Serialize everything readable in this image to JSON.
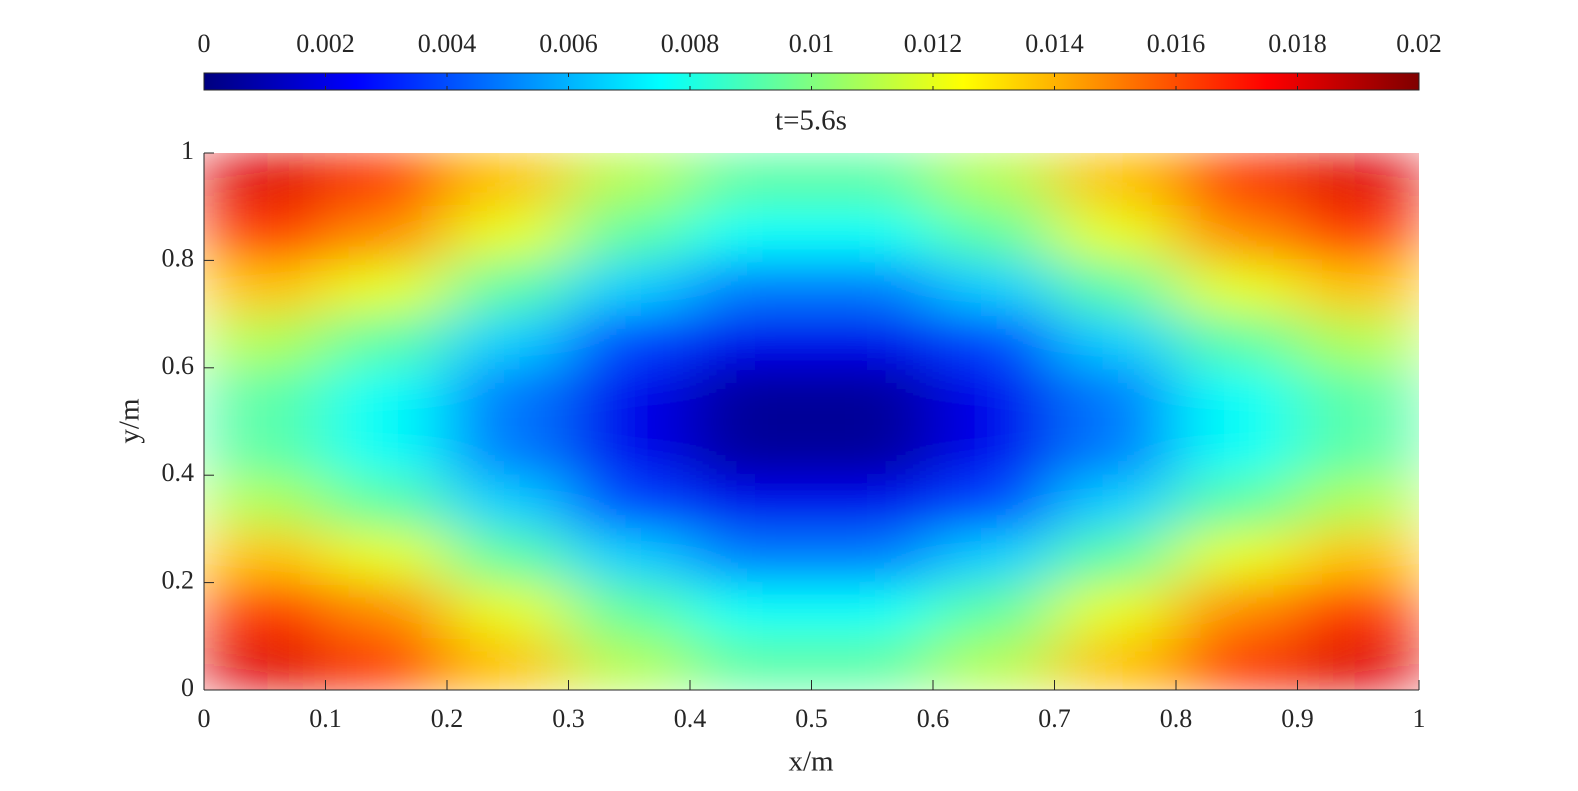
{
  "chart_data": {
    "type": "heatmap",
    "title": "t=5.6s",
    "x_label": "x/m",
    "y_label": "y/m",
    "x": [
      0.05,
      0.15,
      0.25,
      0.35,
      0.45,
      0.55,
      0.65,
      0.75,
      0.85,
      0.95
    ],
    "y": [
      0.05,
      0.15,
      0.25,
      0.35,
      0.45,
      0.55,
      0.65,
      0.75,
      0.85,
      0.95
    ],
    "z": [
      [
        0.01814,
        0.01645,
        0.01372,
        0.01099,
        0.0093,
        0.0093,
        0.01099,
        0.01372,
        0.01645,
        0.01814
      ],
      [
        0.01645,
        0.01476,
        0.01203,
        0.0093,
        0.00761,
        0.00761,
        0.0093,
        0.01203,
        0.01476,
        0.01645
      ],
      [
        0.01372,
        0.01203,
        0.0093,
        0.00657,
        0.00488,
        0.00488,
        0.00657,
        0.0093,
        0.01203,
        0.01372
      ],
      [
        0.01099,
        0.0093,
        0.00657,
        0.00384,
        0.00215,
        0.00215,
        0.00384,
        0.00657,
        0.0093,
        0.01099
      ],
      [
        0.0093,
        0.00761,
        0.00488,
        0.00215,
        0.00046,
        0.00046,
        0.00215,
        0.00488,
        0.00761,
        0.0093
      ],
      [
        0.0093,
        0.00761,
        0.00488,
        0.00215,
        0.00046,
        0.00046,
        0.00215,
        0.00488,
        0.00761,
        0.0093
      ],
      [
        0.01099,
        0.0093,
        0.00657,
        0.00384,
        0.00215,
        0.00215,
        0.00384,
        0.00657,
        0.0093,
        0.01099
      ],
      [
        0.01372,
        0.01203,
        0.0093,
        0.00657,
        0.00488,
        0.00488,
        0.00657,
        0.0093,
        0.01203,
        0.01372
      ],
      [
        0.01645,
        0.01476,
        0.01203,
        0.0093,
        0.00761,
        0.00761,
        0.0093,
        0.01203,
        0.01476,
        0.01645
      ],
      [
        0.01814,
        0.01645,
        0.01372,
        0.01099,
        0.0093,
        0.0093,
        0.01099,
        0.01372,
        0.01645,
        0.01814
      ]
    ],
    "colormap": [
      "#00007f",
      "#0000ff",
      "#0080ff",
      "#00ffff",
      "#80ff80",
      "#ffff00",
      "#ff8000",
      "#ff0000",
      "#7f0000"
    ],
    "clim": [
      0,
      0.02
    ],
    "cticks": [
      0,
      0.002,
      0.004,
      0.006,
      0.008,
      0.01,
      0.012,
      0.014,
      0.016,
      0.018,
      0.02
    ],
    "xlim": [
      0,
      1
    ],
    "xticks": [
      0,
      0.1,
      0.2,
      0.3,
      0.4,
      0.5,
      0.6,
      0.7,
      0.8,
      0.9,
      1
    ],
    "ylim": [
      0,
      1
    ],
    "yticks": [
      0,
      0.2,
      0.4,
      0.6,
      0.8,
      1
    ]
  }
}
